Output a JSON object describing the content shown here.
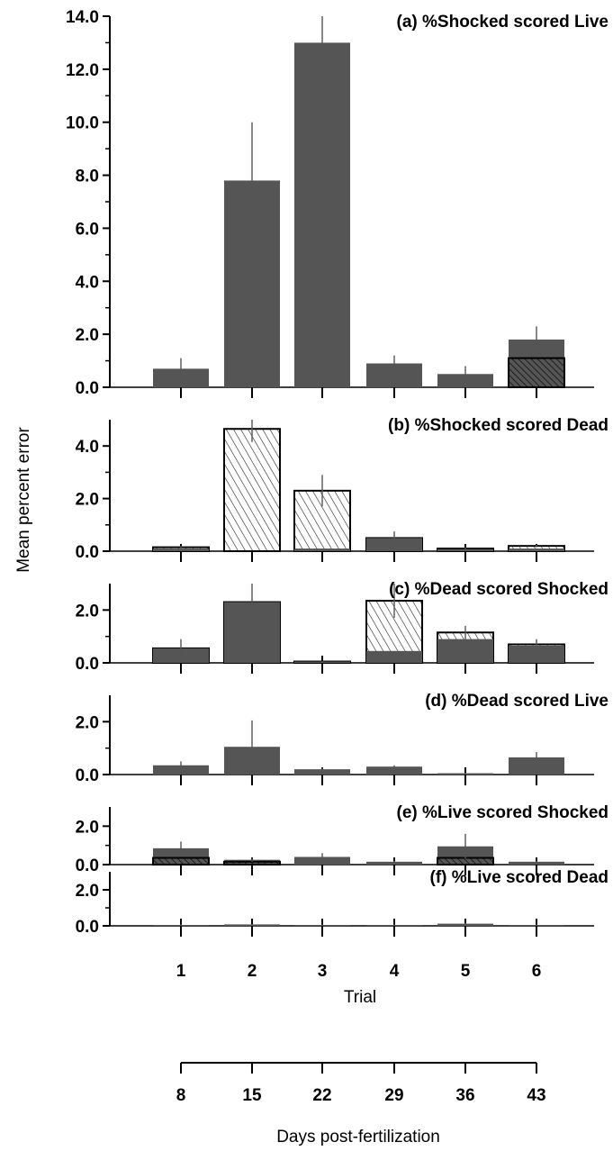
{
  "chart_data": {
    "type": "bar",
    "ylabel": "Mean percent error",
    "xlabel": "Trial",
    "x2label": "Days post-fertilization",
    "categories": [
      "1",
      "2",
      "3",
      "4",
      "5",
      "6"
    ],
    "days": [
      "8",
      "15",
      "22",
      "29",
      "36",
      "43"
    ],
    "colors": {
      "bar": "#555555",
      "hatch_bg": "#ffffff",
      "axis": "#000000"
    },
    "panels": [
      {
        "title": "(a)  %Shocked scored Live",
        "ylim": [
          0,
          14
        ],
        "ticks": [
          "0.0",
          "2.0",
          "4.0",
          "6.0",
          "8.0",
          "10.0",
          "12.0",
          "14.0"
        ],
        "tick_values": [
          0,
          2,
          4,
          6,
          8,
          10,
          12,
          14
        ],
        "series": [
          {
            "values": [
              0.7,
              7.8,
              13.0,
              0.9,
              0.5,
              1.8
            ],
            "errors": [
              0.4,
              2.2,
              1.0,
              0.3,
              0.3,
              0.5
            ],
            "style": "solid"
          },
          {
            "values": [
              0.0,
              0.0,
              0.0,
              0.0,
              0.0,
              1.1
            ],
            "style": "hatch-dark"
          }
        ]
      },
      {
        "title": "(b)  %Shocked scored Dead",
        "ylim": [
          0,
          5
        ],
        "ticks": [
          "0.0",
          "2.0",
          "4.0"
        ],
        "tick_values": [
          0,
          2,
          4
        ],
        "series": [
          {
            "values": [
              0.15,
              4.65,
              2.3,
              0.5,
              0.1,
              0.2
            ],
            "errors": [
              0.05,
              0.5,
              0.6,
              0.25,
              0.05,
              0.05
            ],
            "style": "hatch-light"
          },
          {
            "values": [
              0.1,
              0.0,
              0.1,
              0.5,
              0.08,
              0.1
            ],
            "style": "solid"
          }
        ]
      },
      {
        "title": "(c)  %Dead scored Shocked",
        "ylim": [
          0,
          3
        ],
        "ticks": [
          "0.0",
          "2.0"
        ],
        "tick_values": [
          0,
          2
        ],
        "series": [
          {
            "values": [
              0.55,
              2.3,
              0.05,
              2.35,
              1.15,
              0.7
            ],
            "errors": [
              0.35,
              0.75,
              0.02,
              0.65,
              0.25,
              0.2
            ],
            "style": "hatch-light"
          },
          {
            "values": [
              0.55,
              2.3,
              0.05,
              0.45,
              0.9,
              0.65
            ],
            "style": "solid"
          }
        ]
      },
      {
        "title": "(d)  %Dead scored Live",
        "ylim": [
          0,
          3
        ],
        "ticks": [
          "0.0",
          "2.0"
        ],
        "tick_values": [
          0,
          2
        ],
        "series": [
          {
            "values": [
              0.35,
              1.05,
              0.2,
              0.3,
              0.05,
              0.65
            ],
            "errors": [
              0.15,
              1.0,
              0.05,
              0.05,
              0.02,
              0.2
            ],
            "style": "solid"
          }
        ]
      },
      {
        "title": "(e)  %Live scored Shocked",
        "ylim": [
          0,
          3
        ],
        "ticks": [
          "0.0",
          "2.0"
        ],
        "tick_values": [
          0,
          2
        ],
        "series": [
          {
            "values": [
              0.85,
              0.25,
              0.4,
              0.15,
              0.95,
              0.15
            ],
            "errors": [
              0.35,
              0.1,
              0.2,
              0.05,
              0.65,
              0.05
            ],
            "style": "solid"
          },
          {
            "values": [
              0.35,
              0.15,
              0.0,
              0.0,
              0.35,
              0.0
            ],
            "style": "hatch-dark"
          }
        ]
      },
      {
        "title": "(f)  %Live scored Dead",
        "ylim": [
          0,
          3
        ],
        "ticks": [
          "0.0",
          "2.0"
        ],
        "tick_values": [
          0,
          2
        ],
        "series": [
          {
            "values": [
              0.05,
              0.08,
              0.05,
              0.05,
              0.12,
              0.05
            ],
            "errors": [
              0.02,
              0.02,
              0.02,
              0.02,
              0.05,
              0.02
            ],
            "style": "solid"
          }
        ]
      }
    ]
  }
}
